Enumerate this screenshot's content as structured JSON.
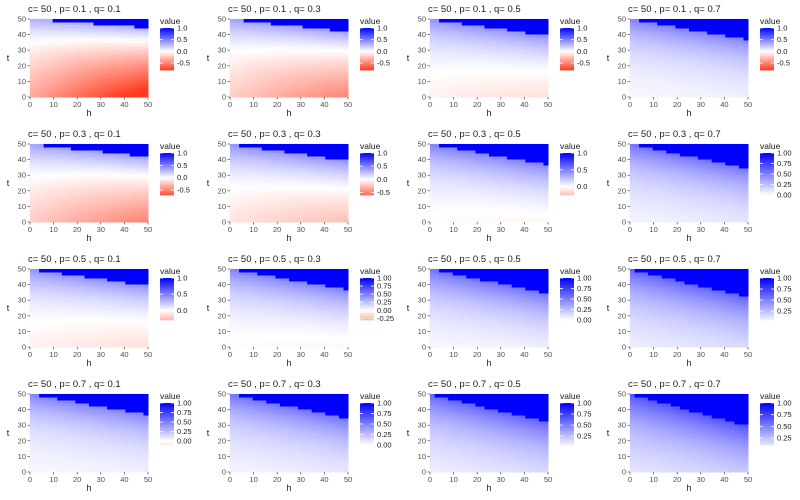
{
  "chart_data": [
    {
      "type": "heatmap",
      "title": "c= 50 , p= 0.1 , q= 0.1",
      "c": 50,
      "p": 0.1,
      "q": 0.1,
      "xlabel": "h",
      "ylabel": "t",
      "xlim": [
        0,
        50
      ],
      "ylim": [
        0,
        50
      ],
      "xticks": [
        "0",
        "10",
        "20",
        "30",
        "40",
        "50"
      ],
      "yticks": [
        "0",
        "10",
        "20",
        "30",
        "40",
        "50"
      ],
      "legend": {
        "title": "value",
        "range": [
          -0.8,
          1.0
        ],
        "ticks": [
          {
            "v": 1.0,
            "label": "1.0"
          },
          {
            "v": 0.5,
            "label": "0.5"
          },
          {
            "v": 0.0,
            "label": "0.0"
          },
          {
            "v": -0.5,
            "label": "-0.5"
          }
        ]
      }
    },
    {
      "type": "heatmap",
      "title": "c= 50 , p= 0.1 , q= 0.3",
      "c": 50,
      "p": 0.1,
      "q": 0.3,
      "xlabel": "h",
      "ylabel": "t",
      "xlim": [
        0,
        50
      ],
      "ylim": [
        0,
        50
      ],
      "xticks": [
        "0",
        "10",
        "20",
        "30",
        "40",
        "50"
      ],
      "yticks": [
        "0",
        "10",
        "20",
        "30",
        "40",
        "50"
      ],
      "legend": {
        "title": "value",
        "range": [
          -0.8,
          1.0
        ],
        "ticks": [
          {
            "v": 1.0,
            "label": "1.0"
          },
          {
            "v": 0.5,
            "label": "0.5"
          },
          {
            "v": 0.0,
            "label": "0.0"
          },
          {
            "v": -0.5,
            "label": "-0.5"
          }
        ]
      }
    },
    {
      "type": "heatmap",
      "title": "c= 50 , p= 0.1 , q= 0.5",
      "c": 50,
      "p": 0.1,
      "q": 0.5,
      "xlabel": "h",
      "ylabel": "t",
      "xlim": [
        0,
        50
      ],
      "ylim": [
        0,
        50
      ],
      "xticks": [
        "0",
        "10",
        "20",
        "30",
        "40",
        "50"
      ],
      "yticks": [
        "0",
        "10",
        "20",
        "30",
        "40",
        "50"
      ],
      "legend": {
        "title": "value",
        "range": [
          -0.8,
          1.0
        ],
        "ticks": [
          {
            "v": 1.0,
            "label": "1.0"
          },
          {
            "v": 0.5,
            "label": "0.5"
          },
          {
            "v": 0.0,
            "label": "0.0"
          },
          {
            "v": -0.5,
            "label": "-0.5"
          }
        ]
      }
    },
    {
      "type": "heatmap",
      "title": "c= 50 , p= 0.1 , q= 0.7",
      "c": 50,
      "p": 0.1,
      "q": 0.7,
      "xlabel": "h",
      "ylabel": "t",
      "xlim": [
        0,
        50
      ],
      "ylim": [
        0,
        50
      ],
      "xticks": [
        "0",
        "10",
        "20",
        "30",
        "40",
        "50"
      ],
      "yticks": [
        "0",
        "10",
        "20",
        "30",
        "40",
        "50"
      ],
      "legend": {
        "title": "value",
        "range": [
          -0.8,
          1.0
        ],
        "ticks": [
          {
            "v": 1.0,
            "label": "1.0"
          },
          {
            "v": 0.5,
            "label": "0.5"
          },
          {
            "v": 0.0,
            "label": "0.0"
          },
          {
            "v": -0.5,
            "label": "-0.5"
          }
        ]
      }
    },
    {
      "type": "heatmap",
      "title": "c= 50 , p= 0.3 , q= 0.1",
      "c": 50,
      "p": 0.3,
      "q": 0.1,
      "xlabel": "h",
      "ylabel": "t",
      "xlim": [
        0,
        50
      ],
      "ylim": [
        0,
        50
      ],
      "xticks": [
        "0",
        "10",
        "20",
        "30",
        "40",
        "50"
      ],
      "yticks": [
        "0",
        "10",
        "20",
        "30",
        "40",
        "50"
      ],
      "legend": {
        "title": "value",
        "range": [
          -0.7,
          1.0
        ],
        "ticks": [
          {
            "v": 1.0,
            "label": "1.0"
          },
          {
            "v": 0.5,
            "label": "0.5"
          },
          {
            "v": 0.0,
            "label": "0.0"
          },
          {
            "v": -0.5,
            "label": "-0.5"
          }
        ]
      }
    },
    {
      "type": "heatmap",
      "title": "c= 50 , p= 0.3 , q= 0.3",
      "c": 50,
      "p": 0.3,
      "q": 0.3,
      "xlabel": "h",
      "ylabel": "t",
      "xlim": [
        0,
        50
      ],
      "ylim": [
        0,
        50
      ],
      "xticks": [
        "0",
        "10",
        "20",
        "30",
        "40",
        "50"
      ],
      "yticks": [
        "0",
        "10",
        "20",
        "30",
        "40",
        "50"
      ],
      "legend": {
        "title": "value",
        "range": [
          -0.6,
          1.0
        ],
        "ticks": [
          {
            "v": 1.0,
            "label": "1.0"
          },
          {
            "v": 0.5,
            "label": "0.5"
          },
          {
            "v": 0.0,
            "label": "0.0"
          },
          {
            "v": -0.5,
            "label": "-0.5"
          }
        ]
      }
    },
    {
      "type": "heatmap",
      "title": "c= 50 , p= 0.3 , q= 0.5",
      "c": 50,
      "p": 0.3,
      "q": 0.5,
      "xlabel": "h",
      "ylabel": "t",
      "xlim": [
        0,
        50
      ],
      "ylim": [
        0,
        50
      ],
      "xticks": [
        "0",
        "10",
        "20",
        "30",
        "40",
        "50"
      ],
      "yticks": [
        "0",
        "10",
        "20",
        "30",
        "40",
        "50"
      ],
      "legend": {
        "title": "value",
        "range": [
          -0.25,
          1.0
        ],
        "ticks": [
          {
            "v": 1.0,
            "label": "1.0"
          },
          {
            "v": 0.5,
            "label": "0.5"
          },
          {
            "v": 0.0,
            "label": "0.0"
          }
        ]
      }
    },
    {
      "type": "heatmap",
      "title": "c= 50 , p= 0.3 , q= 0.7",
      "c": 50,
      "p": 0.3,
      "q": 0.7,
      "xlabel": "h",
      "ylabel": "t",
      "xlim": [
        0,
        50
      ],
      "ylim": [
        0,
        50
      ],
      "xticks": [
        "0",
        "10",
        "20",
        "30",
        "40",
        "50"
      ],
      "yticks": [
        "0",
        "10",
        "20",
        "30",
        "40",
        "50"
      ],
      "legend": {
        "title": "value",
        "range": [
          0.0,
          1.0
        ],
        "ticks": [
          {
            "v": 1.0,
            "label": "1.00"
          },
          {
            "v": 0.75,
            "label": "0.75"
          },
          {
            "v": 0.5,
            "label": "0.50"
          },
          {
            "v": 0.25,
            "label": "0.25"
          },
          {
            "v": 0.0,
            "label": "0.00"
          }
        ]
      }
    },
    {
      "type": "heatmap",
      "title": "c= 50 , p= 0.5 , q= 0.1",
      "c": 50,
      "p": 0.5,
      "q": 0.1,
      "xlabel": "h",
      "ylabel": "t",
      "xlim": [
        0,
        50
      ],
      "ylim": [
        0,
        50
      ],
      "xticks": [
        "0",
        "10",
        "20",
        "30",
        "40",
        "50"
      ],
      "yticks": [
        "0",
        "10",
        "20",
        "30",
        "40",
        "50"
      ],
      "legend": {
        "title": "value",
        "range": [
          -0.3,
          1.0
        ],
        "ticks": [
          {
            "v": 1.0,
            "label": "1.0"
          },
          {
            "v": 0.5,
            "label": "0.5"
          },
          {
            "v": 0.0,
            "label": "0.0"
          }
        ]
      }
    },
    {
      "type": "heatmap",
      "title": "c= 50 , p= 0.5 , q= 0.3",
      "c": 50,
      "p": 0.5,
      "q": 0.3,
      "xlabel": "h",
      "ylabel": "t",
      "xlim": [
        0,
        50
      ],
      "ylim": [
        0,
        50
      ],
      "xticks": [
        "0",
        "10",
        "20",
        "30",
        "40",
        "50"
      ],
      "yticks": [
        "0",
        "10",
        "20",
        "30",
        "40",
        "50"
      ],
      "legend": {
        "title": "value",
        "range": [
          -0.3,
          1.0
        ],
        "ticks": [
          {
            "v": 1.0,
            "label": "1.00"
          },
          {
            "v": 0.75,
            "label": "0.75"
          },
          {
            "v": 0.5,
            "label": "0.50"
          },
          {
            "v": 0.25,
            "label": "0.25"
          },
          {
            "v": 0.0,
            "label": "0.00"
          },
          {
            "v": -0.25,
            "label": "-0.25"
          }
        ]
      }
    },
    {
      "type": "heatmap",
      "title": "c= 50 , p= 0.5 , q= 0.5",
      "c": 50,
      "p": 0.5,
      "q": 0.5,
      "xlabel": "h",
      "ylabel": "t",
      "xlim": [
        0,
        50
      ],
      "ylim": [
        0,
        50
      ],
      "xticks": [
        "0",
        "10",
        "20",
        "30",
        "40",
        "50"
      ],
      "yticks": [
        "0",
        "10",
        "20",
        "30",
        "40",
        "50"
      ],
      "legend": {
        "title": "value",
        "range": [
          0.0,
          1.0
        ],
        "ticks": [
          {
            "v": 1.0,
            "label": "1.00"
          },
          {
            "v": 0.75,
            "label": "0.75"
          },
          {
            "v": 0.5,
            "label": "0.50"
          },
          {
            "v": 0.25,
            "label": "0.25"
          },
          {
            "v": 0.0,
            "label": "0.00"
          }
        ]
      }
    },
    {
      "type": "heatmap",
      "title": "c= 50 , p= 0.5 , q= 0.7",
      "c": 50,
      "p": 0.5,
      "q": 0.7,
      "xlabel": "h",
      "ylabel": "t",
      "xlim": [
        0,
        50
      ],
      "ylim": [
        0,
        50
      ],
      "xticks": [
        "0",
        "10",
        "20",
        "30",
        "40",
        "50"
      ],
      "yticks": [
        "0",
        "10",
        "20",
        "30",
        "40",
        "50"
      ],
      "legend": {
        "title": "value",
        "range": [
          0.05,
          1.0
        ],
        "ticks": [
          {
            "v": 1.0,
            "label": "1.00"
          },
          {
            "v": 0.75,
            "label": "0.75"
          },
          {
            "v": 0.5,
            "label": "0.50"
          },
          {
            "v": 0.25,
            "label": "0.25"
          }
        ]
      }
    },
    {
      "type": "heatmap",
      "title": "c= 50 , p= 0.7 , q= 0.1",
      "c": 50,
      "p": 0.7,
      "q": 0.1,
      "xlabel": "h",
      "ylabel": "t",
      "xlim": [
        0,
        50
      ],
      "ylim": [
        0,
        50
      ],
      "xticks": [
        "0",
        "10",
        "20",
        "30",
        "40",
        "50"
      ],
      "yticks": [
        "0",
        "10",
        "20",
        "30",
        "40",
        "50"
      ],
      "legend": {
        "title": "value",
        "range": [
          -0.1,
          1.0
        ],
        "ticks": [
          {
            "v": 1.0,
            "label": "1.00"
          },
          {
            "v": 0.75,
            "label": "0.75"
          },
          {
            "v": 0.5,
            "label": "0.50"
          },
          {
            "v": 0.25,
            "label": "0.25"
          },
          {
            "v": 0.0,
            "label": "0.00"
          }
        ]
      }
    },
    {
      "type": "heatmap",
      "title": "c= 50 , p= 0.7 , q= 0.3",
      "c": 50,
      "p": 0.7,
      "q": 0.3,
      "xlabel": "h",
      "ylabel": "t",
      "xlim": [
        0,
        50
      ],
      "ylim": [
        0,
        50
      ],
      "xticks": [
        "0",
        "10",
        "20",
        "30",
        "40",
        "50"
      ],
      "yticks": [
        "0",
        "10",
        "20",
        "30",
        "40",
        "50"
      ],
      "legend": {
        "title": "value",
        "range": [
          0.0,
          1.0
        ],
        "ticks": [
          {
            "v": 1.0,
            "label": "1.00"
          },
          {
            "v": 0.75,
            "label": "0.75"
          },
          {
            "v": 0.5,
            "label": "0.50"
          },
          {
            "v": 0.25,
            "label": "0.25"
          },
          {
            "v": 0.0,
            "label": "0.00"
          }
        ]
      }
    },
    {
      "type": "heatmap",
      "title": "c= 50 , p= 0.7 , q= 0.5",
      "c": 50,
      "p": 0.7,
      "q": 0.5,
      "xlabel": "h",
      "ylabel": "t",
      "xlim": [
        0,
        50
      ],
      "ylim": [
        0,
        50
      ],
      "xticks": [
        "0",
        "10",
        "20",
        "30",
        "40",
        "50"
      ],
      "yticks": [
        "0",
        "10",
        "20",
        "30",
        "40",
        "50"
      ],
      "legend": {
        "title": "value",
        "range": [
          0.05,
          1.0
        ],
        "ticks": [
          {
            "v": 1.0,
            "label": "1.00"
          },
          {
            "v": 0.75,
            "label": "0.75"
          },
          {
            "v": 0.5,
            "label": "0.50"
          },
          {
            "v": 0.25,
            "label": "0.25"
          }
        ]
      }
    },
    {
      "type": "heatmap",
      "title": "c= 50 , p= 0.7 , q= 0.7",
      "c": 50,
      "p": 0.7,
      "q": 0.7,
      "xlabel": "h",
      "ylabel": "t",
      "xlim": [
        0,
        50
      ],
      "ylim": [
        0,
        50
      ],
      "xticks": [
        "0",
        "10",
        "20",
        "30",
        "40",
        "50"
      ],
      "yticks": [
        "0",
        "10",
        "20",
        "30",
        "40",
        "50"
      ],
      "legend": {
        "title": "value",
        "range": [
          0.1,
          1.0
        ],
        "ticks": [
          {
            "v": 1.0,
            "label": "1.00"
          },
          {
            "v": 0.75,
            "label": "0.75"
          },
          {
            "v": 0.5,
            "label": "0.50"
          },
          {
            "v": 0.25,
            "label": "0.25"
          }
        ]
      }
    }
  ],
  "colors": {
    "high": "#0000ff",
    "mid": "#ffffff",
    "low": "#ff3b1f",
    "panel_bg": "#ffffff",
    "grid": "#ebebeb",
    "text": "#1a1a1a",
    "tick_text": "#4d4d4d"
  }
}
